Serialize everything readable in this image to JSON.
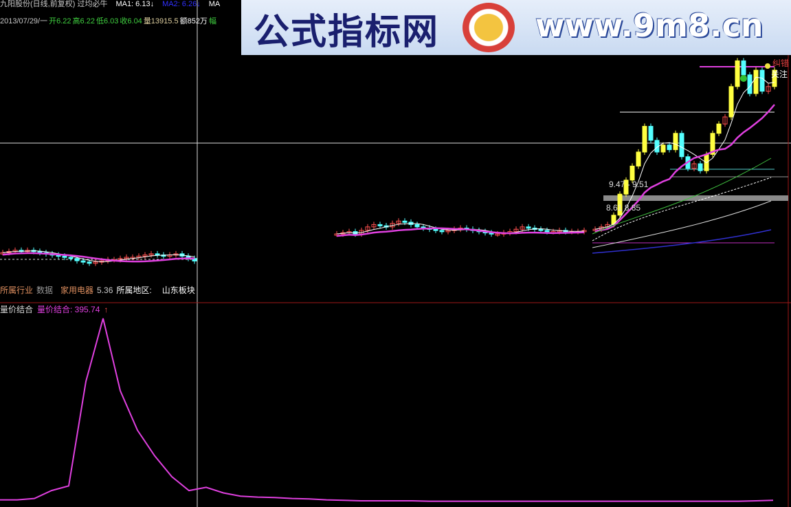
{
  "header": {
    "title": "九阳股份(日线,前复权) 过均必牛",
    "ma1": "MA1: 6.13↓",
    "ma2": "MA2: 6.26↓",
    "ma3": "MA",
    "date": "2013/07/29/一",
    "open": "开6.22",
    "high": "高6.22",
    "low": "低6.03",
    "close": "收6.04",
    "volume": "量13915.5",
    "amount": "额852万",
    "range": "幅"
  },
  "watermark": {
    "name": "公式指标网",
    "url": "www.9m8.cn"
  },
  "annotations": {
    "band1": "9.47 - 9.51",
    "band2": "8.61   8.85",
    "follow": "关注",
    "tag": "纠错"
  },
  "info": {
    "industry_label": "所属行业",
    "data_label": "数据",
    "industry": "家用电器",
    "value": "5.36",
    "region_label": "所属地区:",
    "region": "山东板块"
  },
  "indicator": {
    "name": "量价结合",
    "label": "量价结合: 395.74",
    "arrow": "↑"
  },
  "colors": {
    "up": "#ff5050",
    "down": "#54ffff",
    "big_up": "#ffff40",
    "ma_main": "#e040e0",
    "ma_fast": "#ffffff",
    "ma_green": "#40c040",
    "indicator": "#e040e0"
  },
  "chart_data": [
    {
      "type": "candlestick",
      "title": "九阳股份(日线,前复权) 过均必牛",
      "segments": [
        {
          "name": "left",
          "closes": [
            6.4,
            6.45,
            6.5,
            6.48,
            6.5,
            6.45,
            6.4,
            6.35,
            6.3,
            6.25,
            6.2,
            6.15,
            6.05,
            6.0,
            5.95,
            6.0,
            6.05,
            6.1,
            6.1,
            6.15,
            6.2,
            6.2,
            6.25,
            6.3,
            6.35,
            6.3,
            6.25,
            6.3,
            6.35,
            6.25,
            6.15,
            6.04
          ]
        },
        {
          "name": "middle",
          "closes": [
            7.2,
            7.25,
            7.3,
            7.2,
            7.35,
            7.5,
            7.6,
            7.55,
            7.5,
            7.65,
            7.75,
            7.7,
            7.6,
            7.5,
            7.45,
            7.4,
            7.35,
            7.3,
            7.35,
            7.4,
            7.45,
            7.4,
            7.35,
            7.3,
            7.25,
            7.2,
            7.2,
            7.25,
            7.3,
            7.4,
            7.5,
            7.45,
            7.4,
            7.35,
            7.3,
            7.3,
            7.35,
            7.3,
            7.3,
            7.3,
            7.35
          ]
        },
        {
          "name": "right",
          "closes": [
            7.4,
            7.5,
            7.6,
            8.0,
            8.9,
            9.5,
            10.1,
            10.7,
            11.8,
            11.2,
            10.7,
            11.0,
            10.8,
            11.5,
            10.5,
            10.0,
            10.2,
            9.9,
            10.6,
            11.5,
            11.9,
            12.2,
            13.5,
            14.6,
            14.0,
            13.2,
            14.2,
            13.3,
            13.5,
            14.2
          ]
        }
      ]
    },
    {
      "type": "line",
      "title": "量价结合",
      "series": [
        {
          "name": "量价结合",
          "values": [
            5,
            5,
            8,
            25,
            35,
            260,
            395.74,
            240,
            155,
            100,
            55,
            25,
            32,
            20,
            13,
            11,
            10,
            8,
            7,
            5,
            4,
            3,
            3,
            3,
            3,
            2,
            2,
            2,
            2,
            2,
            2,
            2,
            2,
            2,
            2,
            2,
            2,
            2,
            2,
            2,
            2,
            2,
            2,
            2,
            3,
            4
          ]
        }
      ],
      "ylim": [
        0,
        400
      ]
    }
  ]
}
